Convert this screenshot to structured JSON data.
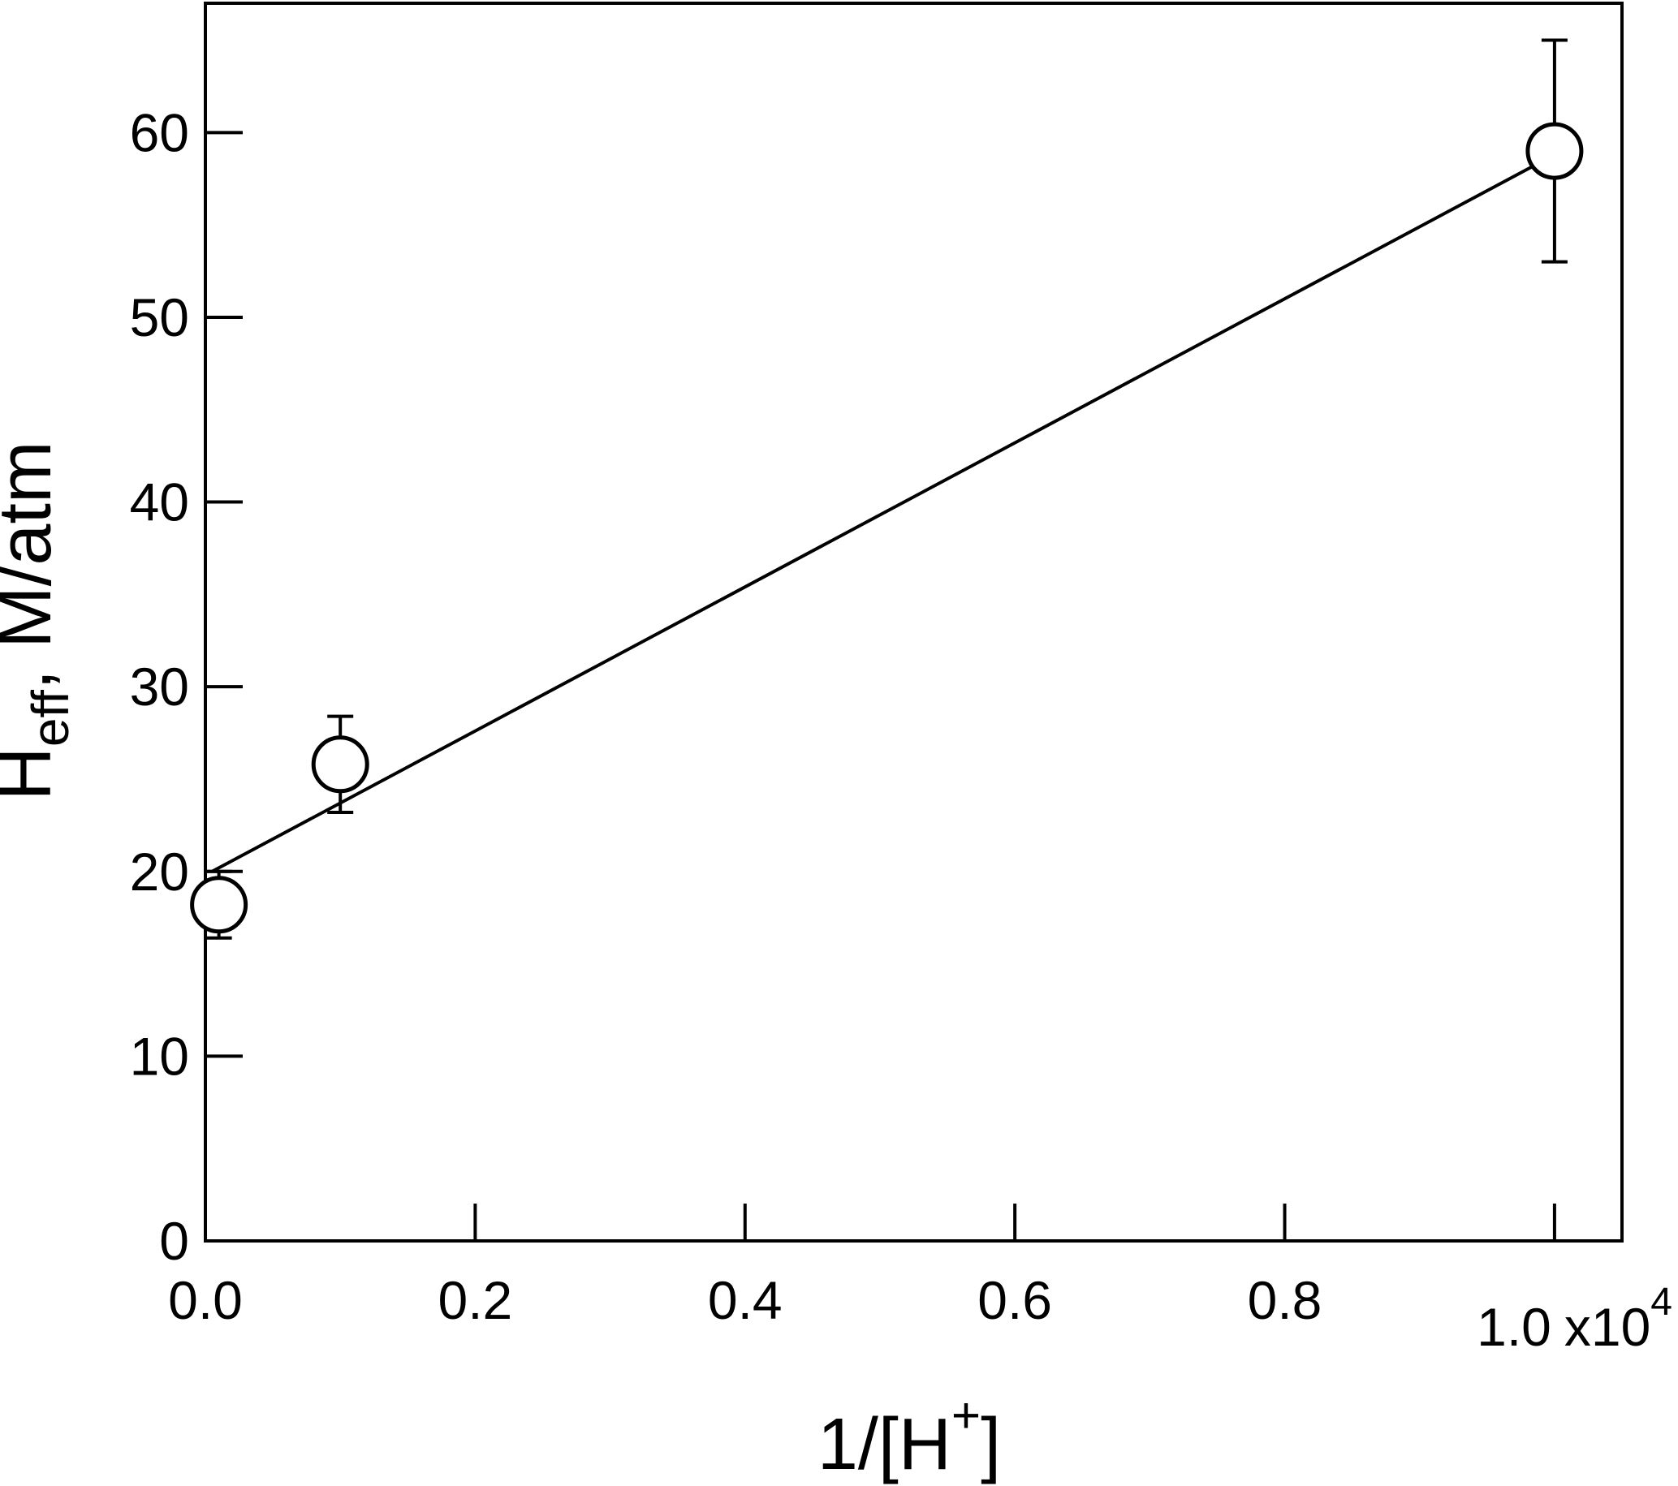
{
  "chart_data": {
    "type": "scatter",
    "x": [
      0.01,
      0.1,
      1.0
    ],
    "y": [
      18.2,
      25.8,
      59.0
    ],
    "y_err": [
      1.8,
      2.6,
      6.0
    ],
    "fit_line": {
      "x": [
        0.005,
        1.0
      ],
      "y": [
        20.0,
        58.8
      ]
    },
    "color": "#000000",
    "marker_fill": "#ffffff",
    "xlim": [
      0,
      1.05
    ],
    "ylim": [
      0,
      67
    ],
    "xticks": [
      {
        "value": 0,
        "label": "0.0"
      },
      0.2,
      0.4,
      0.6,
      0.8,
      {
        "value": 1,
        "label": "1.0"
      }
    ],
    "yticks": [
      0,
      10,
      20,
      30,
      40,
      50,
      60
    ],
    "x_multiplier": {
      "base": "x10",
      "exponent": "4"
    },
    "x_label": {
      "main": "1/[H",
      "sup": "+",
      "end": "]"
    },
    "y_label": {
      "main": "H",
      "sub": "eff",
      "rest": ", M/atm"
    },
    "grid": false
  }
}
